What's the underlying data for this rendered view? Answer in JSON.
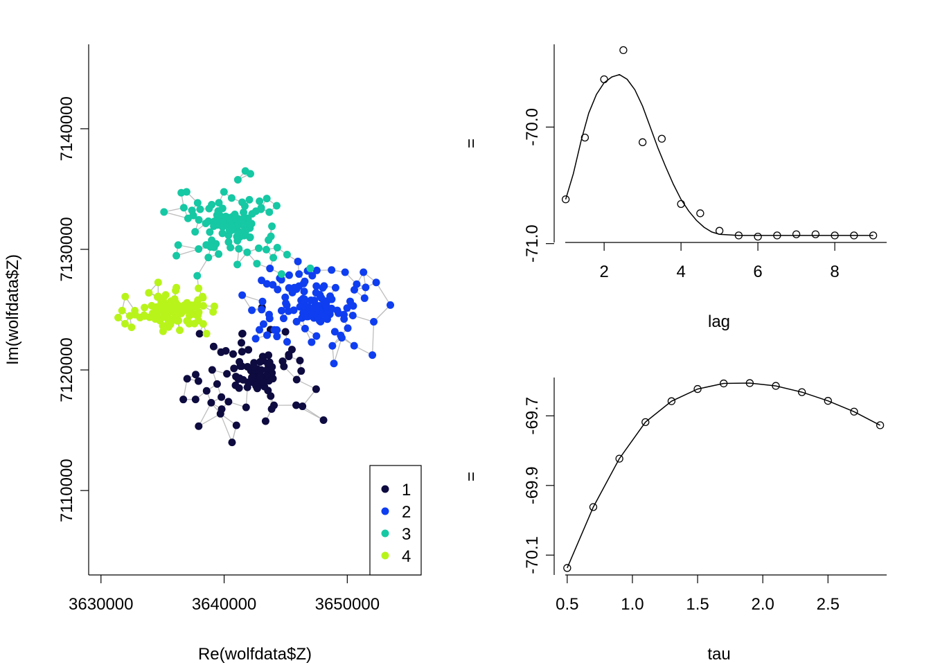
{
  "chart_data": [
    {
      "type": "scatter",
      "xlabel": "Re(wolfdata$Z)",
      "ylabel": "Im(wolfdata$Z)",
      "xlim": [
        3629000,
        3656000
      ],
      "ylim": [
        7103000,
        7147000
      ],
      "xticks": [
        "3630000",
        "3640000",
        "3650000"
      ],
      "xtick_values": [
        3630000,
        3640000,
        3650000
      ],
      "yticks": [
        "7110000",
        "7120000",
        "7130000",
        "7140000"
      ],
      "ytick_values": [
        7110000,
        7120000,
        7130000,
        7140000
      ],
      "edge_color": "#bdbdbd",
      "legend": {
        "position": "bottom-right",
        "entries": [
          {
            "label": "1",
            "color": "#0d0b3f"
          },
          {
            "label": "2",
            "color": "#0f3ef0"
          },
          {
            "label": "3",
            "color": "#16c8a4"
          },
          {
            "label": "4",
            "color": "#b8f41a"
          }
        ]
      },
      "clusters": [
        {
          "name": "1",
          "color": "#0d0b3f",
          "center": [
            3642500,
            7119500
          ],
          "spread": [
            5200,
            4700
          ],
          "count": 100
        },
        {
          "name": "2",
          "color": "#0f3ef0",
          "center": [
            3647500,
            7125000
          ],
          "spread": [
            5800,
            3500
          ],
          "count": 150
        },
        {
          "name": "3",
          "color": "#16c8a4",
          "center": [
            3640500,
            7132000
          ],
          "spread": [
            4800,
            4000
          ],
          "count": 120
        },
        {
          "name": "4",
          "color": "#b8f41a",
          "center": [
            3636000,
            7125000
          ],
          "spread": [
            3600,
            1800
          ],
          "count": 120
        }
      ]
    },
    {
      "type": "line",
      "xlabel": "lag",
      "ylabel": "",
      "marker": "=",
      "xlim": [
        0.7,
        9.35
      ],
      "ylim": [
        -70.99,
        -69.29
      ],
      "xticks": [
        "2",
        "4",
        "6",
        "8"
      ],
      "xtick_values": [
        2,
        4,
        6,
        8
      ],
      "yticks": [
        "-71.0",
        "-70.0"
      ],
      "ytick_values": [
        -71.0,
        -70.0
      ],
      "points": {
        "x": [
          1,
          1.5,
          2,
          2.5,
          3,
          3.5,
          4,
          4.5,
          5,
          5.5,
          6,
          6.5,
          7,
          7.5,
          8,
          8.5,
          9
        ],
        "y": [
          -70.62,
          -70.09,
          -69.59,
          -69.34,
          -70.13,
          -70.1,
          -70.66,
          -70.74,
          -70.89,
          -70.93,
          -70.94,
          -70.93,
          -70.92,
          -70.92,
          -70.93,
          -70.93,
          -70.93
        ]
      },
      "smooth": {
        "x": [
          1.0,
          1.2,
          1.4,
          1.6,
          1.8,
          2.0,
          2.2,
          2.4,
          2.6,
          2.8,
          3.0,
          3.2,
          3.4,
          3.6,
          3.8,
          4.0,
          4.2,
          4.4,
          4.6,
          4.8,
          5.0,
          5.5,
          6.0,
          6.5,
          7.0,
          7.5,
          8.0,
          8.5,
          9.0
        ],
        "y": [
          -70.62,
          -70.4,
          -70.12,
          -69.88,
          -69.72,
          -69.62,
          -69.57,
          -69.55,
          -69.59,
          -69.68,
          -69.82,
          -70.0,
          -70.18,
          -70.34,
          -70.49,
          -70.62,
          -70.72,
          -70.8,
          -70.86,
          -70.9,
          -70.92,
          -70.93,
          -70.93,
          -70.93,
          -70.93,
          -70.93,
          -70.93,
          -70.93,
          -70.93
        ]
      }
    },
    {
      "type": "line",
      "xlabel": "tau",
      "ylabel": "",
      "marker": "=",
      "xlim": [
        0.4,
        2.95
      ],
      "ylim": [
        -70.157,
        -69.59
      ],
      "xticks": [
        "0.5",
        "1.0",
        "1.5",
        "2.0",
        "2.5"
      ],
      "xtick_values": [
        0.5,
        1.0,
        1.5,
        2.0,
        2.5
      ],
      "yticks": [
        "-70.1",
        "-69.9",
        "-69.7"
      ],
      "ytick_values": [
        -70.1,
        -69.9,
        -69.7
      ],
      "points": {
        "x": [
          0.5,
          0.7,
          0.9,
          1.1,
          1.3,
          1.5,
          1.7,
          1.9,
          2.1,
          2.3,
          2.5,
          2.7,
          2.9
        ],
        "y": [
          -70.137,
          -69.962,
          -69.823,
          -69.718,
          -69.658,
          -69.623,
          -69.607,
          -69.606,
          -69.614,
          -69.632,
          -69.657,
          -69.688,
          -69.727
        ]
      }
    }
  ]
}
